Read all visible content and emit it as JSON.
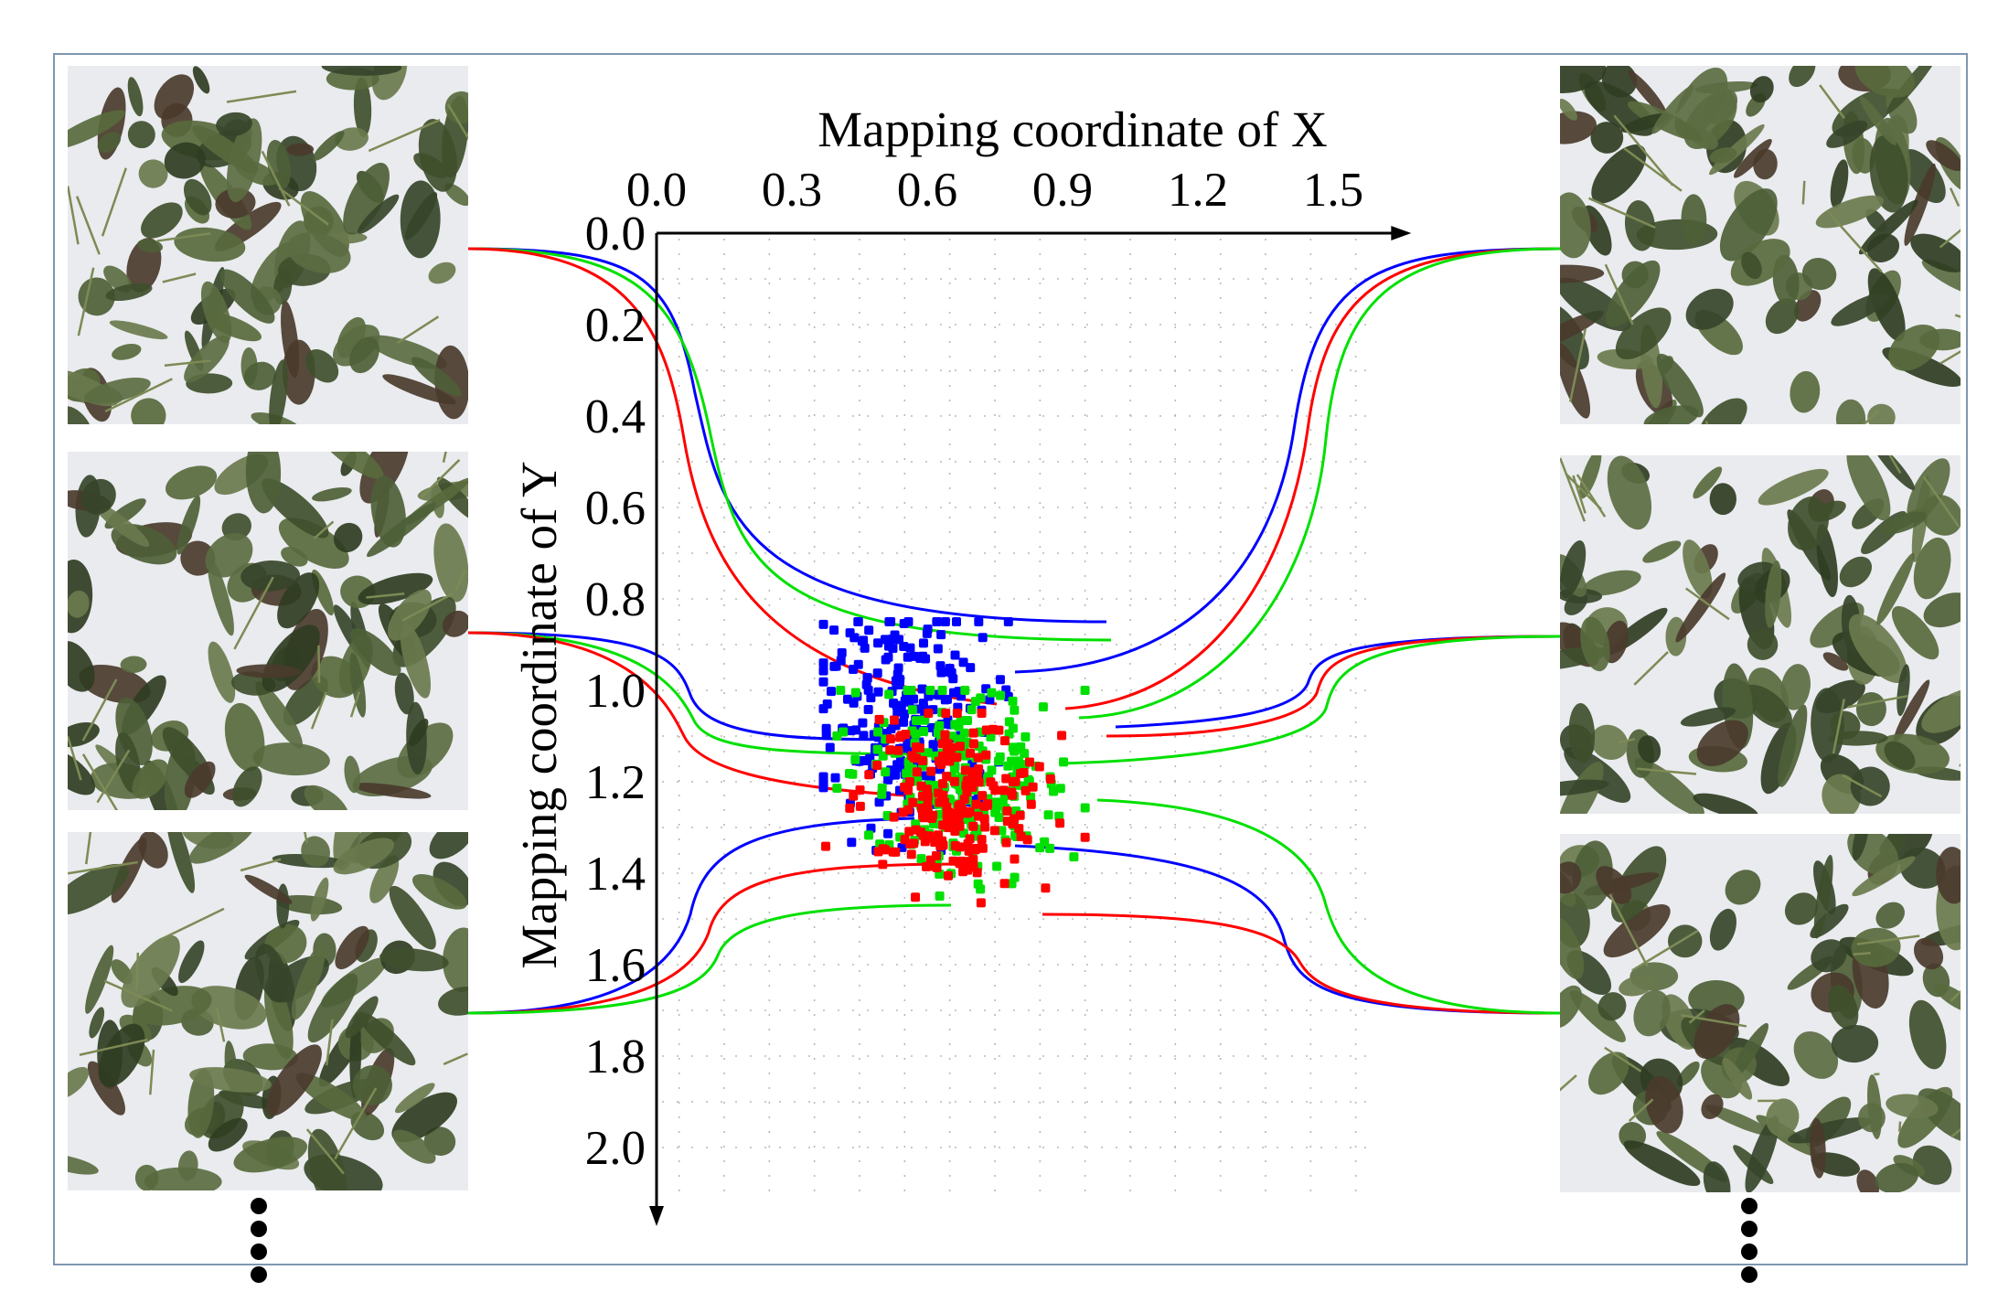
{
  "chart_data": {
    "type": "scatter",
    "xlabel": "Mapping coordinate of X",
    "ylabel": "Mapping coordinate of  Y",
    "x_axis_position": "top",
    "y_axis_inverted": true,
    "xlim": [
      0.0,
      1.6
    ],
    "ylim": [
      0.0,
      2.1
    ],
    "x_ticks": [
      "0.0",
      "0.3",
      "0.6",
      "0.9",
      "1.2",
      "1.5"
    ],
    "y_ticks": [
      "0.0",
      "0.2",
      "0.4",
      "0.6",
      "0.8",
      "1.0",
      "1.2",
      "1.4",
      "1.6",
      "1.8",
      "2.0"
    ],
    "grid": "dotted",
    "colors": {
      "blue": "#0000ff",
      "red": "#ff0000",
      "green": "#00e000"
    },
    "series": [
      {
        "color": "#0000ff",
        "center": [
          0.55,
          1.05
        ],
        "spread": [
          0.1,
          0.13
        ],
        "count": 230,
        "x_range": [
          0.37,
          0.78
        ],
        "y_range": [
          0.85,
          1.35
        ]
      },
      {
        "color": "#00e000",
        "center": [
          0.68,
          1.19
        ],
        "spread": [
          0.12,
          0.1
        ],
        "count": 230,
        "x_range": [
          0.4,
          0.95
        ],
        "y_range": [
          1.0,
          1.45
        ]
      },
      {
        "color": "#ff0000",
        "center": [
          0.66,
          1.25
        ],
        "spread": [
          0.1,
          0.09
        ],
        "count": 210,
        "x_range": [
          0.37,
          0.95
        ],
        "y_range": [
          1.05,
          1.52
        ]
      }
    ],
    "connector_lines": "curves linking leaf images on both sides to each colour cluster"
  },
  "images": {
    "left": [
      "leaf-photo-1",
      "leaf-photo-2",
      "leaf-photo-3"
    ],
    "right": [
      "leaf-photo-4",
      "leaf-photo-5",
      "leaf-photo-6"
    ],
    "more_indicator": "vertical-ellipsis"
  }
}
